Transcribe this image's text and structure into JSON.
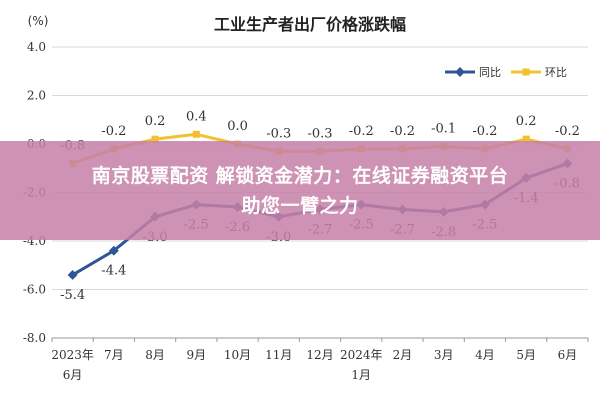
{
  "chart_data": {
    "type": "line",
    "title": "工业生产者出厂价格涨跌幅",
    "ylabel": "(%)",
    "xlabel": "",
    "ylim": [
      -8.0,
      4.0
    ],
    "yticks": [
      "4.0",
      "2.0",
      "0.0",
      "-2.0",
      "-4.0",
      "-6.0",
      "-8.0"
    ],
    "ytick_values": [
      4,
      2,
      0,
      -2,
      -4,
      -6,
      -8
    ],
    "categories": [
      "2023年6月",
      "7月",
      "8月",
      "9月",
      "10月",
      "11月",
      "12月",
      "2024年1月",
      "2月",
      "3月",
      "4月",
      "5月",
      "6月"
    ],
    "category_lines": [
      [
        "2023年",
        "6月"
      ],
      [
        "7月"
      ],
      [
        "8月"
      ],
      [
        "9月"
      ],
      [
        "10月"
      ],
      [
        "11月"
      ],
      [
        "12月"
      ],
      [
        "2024年",
        "1月"
      ],
      [
        "2月"
      ],
      [
        "3月"
      ],
      [
        "4月"
      ],
      [
        "5月"
      ],
      [
        "6月"
      ]
    ],
    "legend_position": "top-right",
    "grid": true,
    "series": [
      {
        "name": "同比",
        "color": "#2e5597",
        "values": [
          -5.4,
          -4.4,
          -3.0,
          -2.5,
          -2.6,
          -3.0,
          -2.7,
          -2.5,
          -2.7,
          -2.8,
          -2.5,
          -1.4,
          -0.8
        ],
        "labels": [
          "-5.4",
          "-4.4",
          "-3.0",
          "-2.5",
          "-2.6",
          "-3.0",
          "-2.7",
          "-2.5",
          "-2.7",
          "-2.8",
          "-2.5",
          "-1.4",
          "-0.8"
        ]
      },
      {
        "name": "环比",
        "color": "#f2c12e",
        "values": [
          -0.8,
          -0.2,
          0.2,
          0.4,
          0.0,
          -0.3,
          -0.3,
          -0.2,
          -0.2,
          -0.1,
          -0.2,
          0.2,
          -0.2
        ],
        "labels": [
          "-0.8",
          "-0.2",
          "0.2",
          "0.4",
          "0.0",
          "-0.3",
          "-0.3",
          "-0.2",
          "-0.2",
          "-0.1",
          "-0.2",
          "0.2",
          "-0.2"
        ]
      }
    ]
  },
  "overlay": {
    "line1": "南京股票配资 解锁资金潜力：在线证券融资平台",
    "line2": "助您一臂之力"
  }
}
